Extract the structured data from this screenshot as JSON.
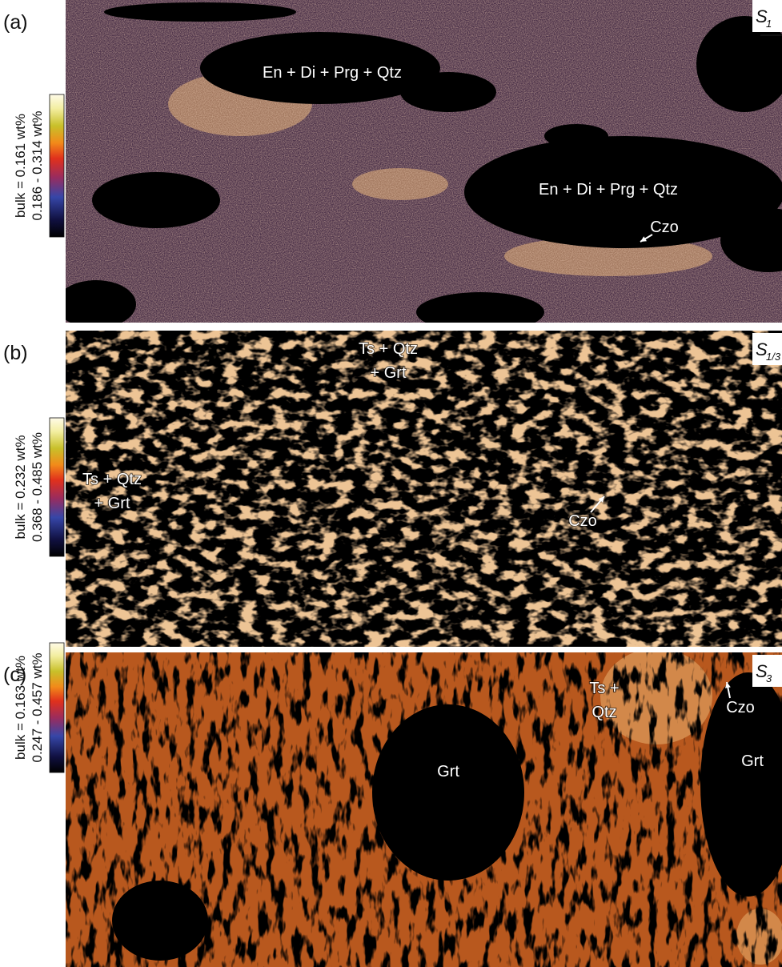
{
  "panels": [
    {
      "label": "(a)",
      "bulk": "bulk = 0.161 wt%",
      "range": "0.186 - 0.314 wt%",
      "sample": {
        "main": "S",
        "sub": "1"
      },
      "annotations": [
        {
          "lines": [
            "En + Di + Prg + Qtz"
          ]
        },
        {
          "lines": [
            "En + Di + Prg + Qtz"
          ]
        },
        {
          "lines": [
            "Czo"
          ]
        }
      ]
    },
    {
      "label": "(b)",
      "bulk": "bulk = 0.232 wt%",
      "range": "0.368 - 0.485 wt%",
      "sample": {
        "main": "S",
        "sub": "1/3"
      },
      "annotations": [
        {
          "lines": [
            "Ts + Qtz",
            "+ Grt"
          ]
        },
        {
          "lines": [
            "Ts + Qtz",
            "+ Grt"
          ]
        },
        {
          "lines": [
            "Czo"
          ]
        }
      ]
    },
    {
      "label": "(c)",
      "bulk": "bulk = 0.163 wt%",
      "range": "0.247 - 0.457 wt%",
      "sample": {
        "main": "S",
        "sub": "3"
      },
      "annotations": [
        {
          "lines": [
            "Ts +",
            "Qtz"
          ]
        },
        {
          "lines": [
            "Czo"
          ]
        },
        {
          "lines": [
            "Grt"
          ]
        },
        {
          "lines": [
            "Grt"
          ]
        }
      ]
    }
  ]
}
